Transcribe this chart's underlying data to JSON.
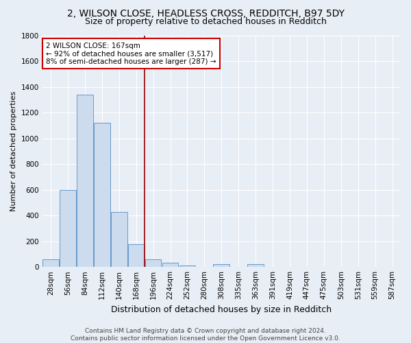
{
  "title": "2, WILSON CLOSE, HEADLESS CROSS, REDDITCH, B97 5DY",
  "subtitle": "Size of property relative to detached houses in Redditch",
  "xlabel": "Distribution of detached houses by size in Redditch",
  "ylabel": "Number of detached properties",
  "categories": [
    "28sqm",
    "56sqm",
    "84sqm",
    "112sqm",
    "140sqm",
    "168sqm",
    "196sqm",
    "224sqm",
    "252sqm",
    "280sqm",
    "308sqm",
    "335sqm",
    "363sqm",
    "391sqm",
    "419sqm",
    "447sqm",
    "475sqm",
    "503sqm",
    "531sqm",
    "559sqm",
    "587sqm"
  ],
  "values": [
    60,
    600,
    1340,
    1120,
    425,
    175,
    60,
    35,
    10,
    0,
    20,
    0,
    20,
    0,
    0,
    0,
    0,
    0,
    0,
    0,
    0
  ],
  "bar_color": "#ccdcee",
  "bar_edge_color": "#6699cc",
  "background_color": "#e8eef5",
  "grid_color": "#ffffff",
  "vline_x_index": 5,
  "vline_color": "#990000",
  "annotation_text": "2 WILSON CLOSE: 167sqm\n← 92% of detached houses are smaller (3,517)\n8% of semi-detached houses are larger (287) →",
  "annotation_box_facecolor": "#ffffff",
  "annotation_box_edgecolor": "#cc0000",
  "footer": "Contains HM Land Registry data © Crown copyright and database right 2024.\nContains public sector information licensed under the Open Government Licence v3.0.",
  "ylim": [
    0,
    1800
  ],
  "yticks": [
    0,
    200,
    400,
    600,
    800,
    1000,
    1200,
    1400,
    1600,
    1800
  ],
  "title_fontsize": 10,
  "subtitle_fontsize": 9,
  "xlabel_fontsize": 9,
  "ylabel_fontsize": 8,
  "tick_fontsize": 7.5,
  "annotation_fontsize": 7.5,
  "footer_fontsize": 6.5
}
